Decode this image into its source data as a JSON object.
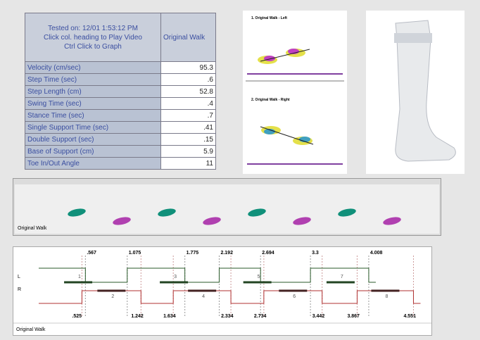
{
  "table": {
    "header": [
      "Tested on: 12/01 1:53:12 PM",
      "Click col. heading to Play Video",
      "Ctrl Click to Graph"
    ],
    "column": "Original Walk",
    "rows": [
      [
        "Velocity (cm/sec)",
        "95.3"
      ],
      [
        "Step Time (sec)",
        ".6"
      ],
      [
        "Step Length (cm)",
        "52.8"
      ],
      [
        "Swing Time (sec)",
        ".4"
      ],
      [
        "Stance Time (sec)",
        ".7"
      ],
      [
        "Single Support Time (sec)",
        ".41"
      ],
      [
        "Double Support (sec)",
        ".15"
      ],
      [
        "Base of Support (cm)",
        "5.9"
      ],
      [
        "Toe In/Out Angle",
        "11"
      ]
    ]
  },
  "plots": [
    "1. Original Walk - Left",
    "2. Original Walk - Right"
  ],
  "footprints": {
    "label": "Original Walk"
  },
  "timing": {
    "label": "Original Walk",
    "left": "L",
    "right": "R",
    "top_times": [
      ".567",
      "1.075",
      "1.775",
      "2.192",
      "2.694",
      "3.3",
      "4.008"
    ],
    "bottom_times": [
      ".525",
      "1.242",
      "1.634",
      "2.334",
      "2.734",
      "3.442",
      "3.867",
      "4.551"
    ],
    "top_steps": [
      "1",
      "3",
      "5",
      "7"
    ],
    "bottom_steps": [
      "2",
      "4",
      "6",
      "8"
    ]
  }
}
